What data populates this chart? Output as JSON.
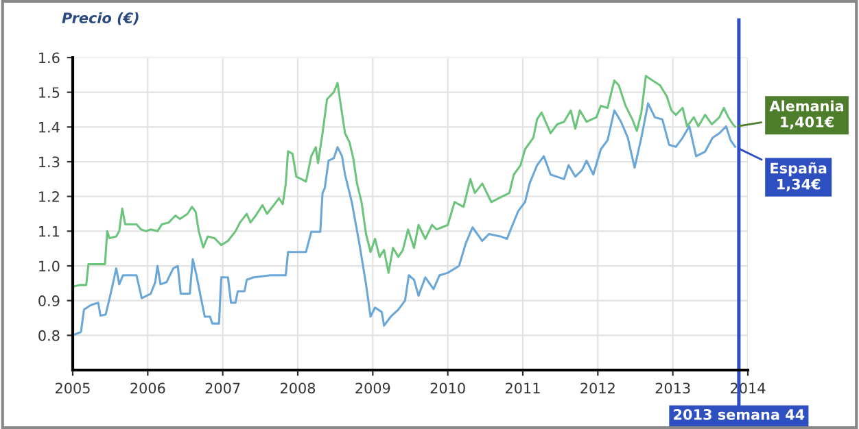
{
  "chart_data": {
    "type": "line",
    "ylabel": "Precio (€)",
    "xlim": [
      2005,
      2014
    ],
    "xticks": [
      2005,
      2006,
      2007,
      2008,
      2009,
      2010,
      2011,
      2012,
      2013,
      2014
    ],
    "ylim": [
      0.7,
      1.6
    ],
    "yticks": [
      0.8,
      0.9,
      {
        "value": 1.0,
        "label": "1.0"
      },
      1.1,
      1.2,
      1.3,
      1.4,
      1.5,
      1.6
    ],
    "grid": true,
    "marker": "none",
    "line_style": "solid",
    "series": [
      {
        "name": "Alemania",
        "color": "#6cc47c",
        "x": [
          2005.0,
          2005.09,
          2005.18,
          2005.21,
          2005.43,
          2005.46,
          2005.49,
          2005.58,
          2005.62,
          2005.66,
          2005.7,
          2005.85,
          2005.91,
          2005.98,
          2006.04,
          2006.13,
          2006.19,
          2006.28,
          2006.37,
          2006.43,
          2006.53,
          2006.59,
          2006.64,
          2006.68,
          2006.74,
          2006.8,
          2006.89,
          2006.98,
          2007.07,
          2007.17,
          2007.23,
          2007.32,
          2007.37,
          2007.44,
          2007.53,
          2007.59,
          2007.69,
          2007.75,
          2007.8,
          2007.84,
          2007.87,
          2007.93,
          2007.98,
          2008.05,
          2008.11,
          2008.18,
          2008.24,
          2008.27,
          2008.33,
          2008.39,
          2008.48,
          2008.53,
          2008.57,
          2008.63,
          2008.69,
          2008.74,
          2008.79,
          2008.85,
          2008.91,
          2008.97,
          2009.03,
          2009.09,
          2009.15,
          2009.21,
          2009.27,
          2009.34,
          2009.4,
          2009.47,
          2009.55,
          2009.61,
          2009.7,
          2009.79,
          2009.85,
          2010.0,
          2010.09,
          2010.21,
          2010.3,
          2010.36,
          2010.46,
          2010.58,
          2010.7,
          2010.82,
          2010.88,
          2010.97,
          2011.03,
          2011.14,
          2011.19,
          2011.25,
          2011.37,
          2011.46,
          2011.55,
          2011.64,
          2011.7,
          2011.76,
          2011.85,
          2011.98,
          2012.04,
          2012.13,
          2012.22,
          2012.28,
          2012.37,
          2012.46,
          2012.52,
          2012.58,
          2012.64,
          2012.73,
          2012.83,
          2012.92,
          2012.98,
          2013.04,
          2013.13,
          2013.19,
          2013.28,
          2013.34,
          2013.43,
          2013.52,
          2013.62,
          2013.68,
          2013.74,
          2013.8,
          2013.83
        ],
        "values": [
          0.94,
          0.945,
          0.945,
          1.005,
          1.005,
          1.1,
          1.08,
          1.085,
          1.1,
          1.165,
          1.12,
          1.12,
          1.105,
          1.1,
          1.105,
          1.1,
          1.12,
          1.125,
          1.145,
          1.135,
          1.15,
          1.17,
          1.155,
          1.1,
          1.053,
          1.085,
          1.08,
          1.06,
          1.072,
          1.1,
          1.125,
          1.15,
          1.125,
          1.145,
          1.175,
          1.15,
          1.178,
          1.195,
          1.178,
          1.237,
          1.33,
          1.323,
          1.257,
          1.25,
          1.243,
          1.316,
          1.342,
          1.296,
          1.382,
          1.48,
          1.5,
          1.527,
          1.468,
          1.382,
          1.356,
          1.31,
          1.237,
          1.184,
          1.092,
          1.04,
          1.078,
          1.026,
          1.046,
          0.98,
          1.052,
          1.026,
          1.045,
          1.105,
          1.052,
          1.118,
          1.078,
          1.118,
          1.105,
          1.118,
          1.184,
          1.17,
          1.25,
          1.21,
          1.237,
          1.184,
          1.197,
          1.21,
          1.263,
          1.29,
          1.336,
          1.369,
          1.422,
          1.442,
          1.382,
          1.408,
          1.415,
          1.448,
          1.395,
          1.448,
          1.415,
          1.428,
          1.461,
          1.455,
          1.534,
          1.52,
          1.461,
          1.422,
          1.389,
          1.442,
          1.547,
          1.534,
          1.52,
          1.488,
          1.448,
          1.435,
          1.455,
          1.402,
          1.428,
          1.402,
          1.435,
          1.408,
          1.428,
          1.455,
          1.428,
          1.408,
          1.401
        ]
      },
      {
        "name": "España",
        "color": "#6aa6d6",
        "x": [
          2005.0,
          2005.11,
          2005.15,
          2005.24,
          2005.34,
          2005.37,
          2005.44,
          2005.52,
          2005.58,
          2005.62,
          2005.67,
          2005.85,
          2005.92,
          2006.04,
          2006.1,
          2006.13,
          2006.17,
          2006.25,
          2006.34,
          2006.4,
          2006.44,
          2006.56,
          2006.6,
          2006.65,
          2006.71,
          2006.76,
          2006.83,
          2006.86,
          2006.95,
          2006.98,
          2007.07,
          2007.11,
          2007.17,
          2007.2,
          2007.29,
          2007.32,
          2007.41,
          2007.63,
          2007.84,
          2007.87,
          2008.11,
          2008.18,
          2008.3,
          2008.33,
          2008.36,
          2008.41,
          2008.48,
          2008.53,
          2008.59,
          2008.63,
          2008.72,
          2008.82,
          2008.91,
          2008.97,
          2009.03,
          2009.12,
          2009.15,
          2009.24,
          2009.34,
          2009.43,
          2009.48,
          2009.55,
          2009.61,
          2009.7,
          2009.81,
          2009.89,
          2010.0,
          2010.15,
          2010.24,
          2010.33,
          2010.46,
          2010.55,
          2010.7,
          2010.79,
          2010.85,
          2010.94,
          2011.03,
          2011.09,
          2011.19,
          2011.28,
          2011.37,
          2011.55,
          2011.61,
          2011.7,
          2011.79,
          2011.85,
          2011.94,
          2012.04,
          2012.13,
          2012.22,
          2012.31,
          2012.4,
          2012.49,
          2012.58,
          2012.67,
          2012.76,
          2012.86,
          2012.95,
          2013.04,
          2013.13,
          2013.22,
          2013.31,
          2013.43,
          2013.53,
          2013.62,
          2013.71,
          2013.77,
          2013.83
        ],
        "values": [
          0.8,
          0.81,
          0.874,
          0.887,
          0.894,
          0.857,
          0.86,
          0.933,
          0.993,
          0.947,
          0.973,
          0.973,
          0.907,
          0.92,
          0.953,
          1.0,
          0.947,
          0.953,
          0.993,
          1.0,
          0.92,
          0.92,
          1.019,
          0.973,
          0.907,
          0.854,
          0.854,
          0.834,
          0.834,
          0.967,
          0.967,
          0.894,
          0.894,
          0.927,
          0.927,
          0.96,
          0.967,
          0.973,
          0.973,
          1.04,
          1.04,
          1.098,
          1.098,
          1.21,
          1.224,
          1.303,
          1.31,
          1.342,
          1.316,
          1.263,
          1.184,
          1.065,
          0.947,
          0.854,
          0.88,
          0.867,
          0.828,
          0.854,
          0.874,
          0.9,
          0.973,
          0.96,
          0.914,
          0.967,
          0.933,
          0.973,
          0.98,
          1.0,
          1.065,
          1.111,
          1.072,
          1.092,
          1.085,
          1.078,
          1.111,
          1.158,
          1.184,
          1.237,
          1.29,
          1.316,
          1.263,
          1.25,
          1.29,
          1.257,
          1.276,
          1.303,
          1.263,
          1.336,
          1.362,
          1.448,
          1.415,
          1.369,
          1.283,
          1.369,
          1.468,
          1.428,
          1.422,
          1.349,
          1.343,
          1.369,
          1.402,
          1.316,
          1.329,
          1.369,
          1.382,
          1.402,
          1.362,
          1.343
        ]
      }
    ],
    "ref_lines": [
      {
        "axis": "x",
        "value": 2013.88,
        "label": "2013 semana 44",
        "color": "#2e4fc0"
      }
    ],
    "annotations": [
      "1,401€",
      "1,34€"
    ]
  }
}
